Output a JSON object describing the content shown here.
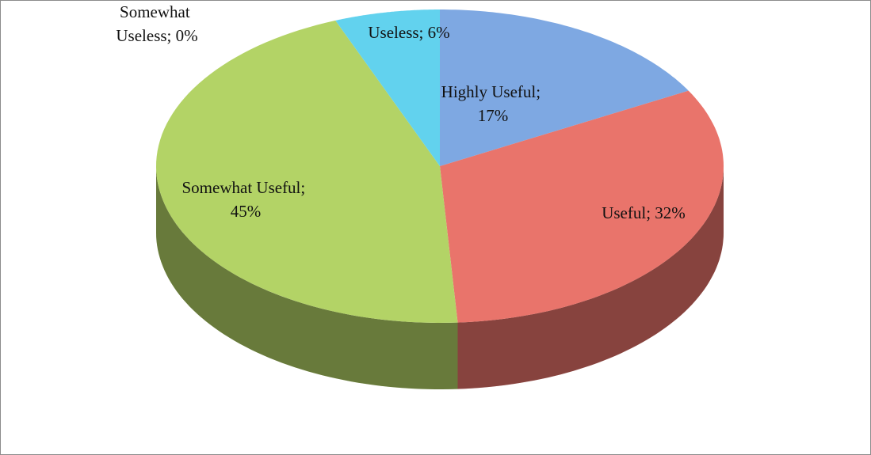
{
  "chart_data": {
    "type": "pie",
    "values": [
      17,
      32,
      45,
      0,
      6
    ],
    "value_labels": [
      "Highly Useful; 17%",
      "Useful; 32%",
      "Somewhat Useful; 45%",
      "Somewhat Useless; 0%",
      "Useless; 6%"
    ],
    "colors": [
      "#7ea8e2",
      "#e9746b",
      "#b3d366",
      "#9b7ec0",
      "#62d2ee"
    ]
  }
}
